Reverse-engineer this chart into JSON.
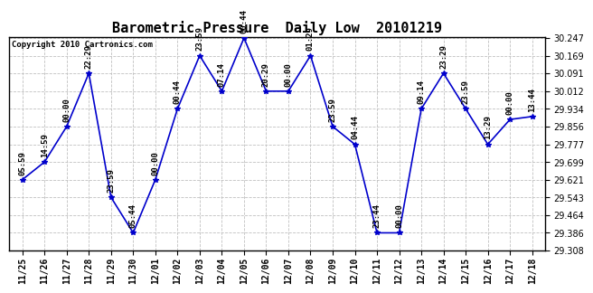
{
  "title": "Barometric Pressure  Daily Low  20101219",
  "copyright": "Copyright 2010 Cartronics.com",
  "x_labels": [
    "11/25",
    "11/26",
    "11/27",
    "11/28",
    "11/29",
    "11/30",
    "12/01",
    "12/02",
    "12/03",
    "12/04",
    "12/05",
    "12/06",
    "12/07",
    "12/08",
    "12/09",
    "12/10",
    "12/11",
    "12/12",
    "12/13",
    "12/14",
    "12/15",
    "12/16",
    "12/17",
    "12/18"
  ],
  "y_values": [
    29.621,
    29.699,
    29.856,
    30.091,
    29.543,
    29.386,
    29.621,
    29.934,
    30.169,
    30.012,
    30.247,
    30.012,
    30.012,
    30.169,
    29.856,
    29.777,
    29.386,
    29.386,
    29.934,
    30.091,
    29.934,
    29.777,
    29.887,
    29.9
  ],
  "point_labels": [
    "05:59",
    "14:59",
    "00:00",
    "22:29",
    "23:59",
    "05:44",
    "00:00",
    "00:44",
    "23:59",
    "07:14",
    "00:44",
    "20:29",
    "00:00",
    "01:29",
    "23:59",
    "04:44",
    "23:44",
    "00:00",
    "09:14",
    "23:29",
    "23:59",
    "13:29",
    "00:00",
    "13:44"
  ],
  "ylim_min": 29.308,
  "ylim_max": 30.247,
  "y_ticks": [
    29.308,
    29.386,
    29.464,
    29.543,
    29.621,
    29.699,
    29.777,
    29.856,
    29.934,
    30.012,
    30.091,
    30.169,
    30.247
  ],
  "line_color": "#0000cc",
  "marker_color": "#0000cc",
  "bg_color": "#ffffff",
  "grid_color": "#c0c0c0",
  "title_fontsize": 11,
  "tick_fontsize": 7,
  "label_fontsize": 6.5
}
